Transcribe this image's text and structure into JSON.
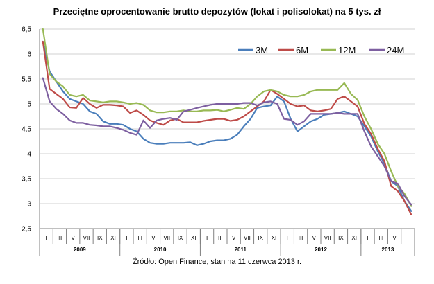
{
  "chart_data": {
    "type": "line",
    "title": "Przeciętne oprocentowanie  brutto  depozytów (lokat i polisolokat) na 5 tys. zł",
    "source": "Źródło: Open Finance, stan na 11 czerwca 2013 r.",
    "ylim": [
      2.5,
      6.5
    ],
    "y_ticks": [
      "6,5",
      "6",
      "5,5",
      "5",
      "4,5",
      "4",
      "3,5",
      "3",
      "2,5"
    ],
    "y_tick_values": [
      6.5,
      6,
      5.5,
      5,
      4.5,
      4,
      3.5,
      3,
      2.5
    ],
    "grid": true,
    "legend_position": "top-right",
    "month_labels": [
      "I",
      "III",
      "V",
      "VII",
      "IX",
      "XI",
      "I",
      "III",
      "V",
      "VII",
      "IX",
      "XI",
      "I",
      "III",
      "V",
      "VII",
      "IX",
      "XI",
      "I",
      "III",
      "V",
      "VII",
      "IX",
      "XI",
      "I",
      "III",
      "V"
    ],
    "years": [
      "2009",
      "2010",
      "2011",
      "2012",
      "2013"
    ],
    "series": [
      {
        "name": "3M",
        "color": "#4a7ebb",
        "values": [
          6.25,
          5.65,
          5.45,
          5.25,
          5.1,
          5.05,
          5.0,
          4.85,
          4.8,
          4.65,
          4.6,
          4.6,
          4.58,
          4.5,
          4.45,
          4.3,
          4.22,
          4.2,
          4.2,
          4.22,
          4.22,
          4.22,
          4.23,
          4.17,
          4.2,
          4.25,
          4.27,
          4.27,
          4.3,
          4.38,
          4.55,
          4.7,
          4.92,
          4.95,
          4.97,
          5.15,
          5.05,
          4.7,
          4.45,
          4.55,
          4.65,
          4.7,
          4.78,
          4.8,
          4.82,
          4.85,
          4.8,
          4.75,
          4.55,
          4.35,
          4.05,
          3.8,
          3.45,
          3.35,
          3.05,
          2.85
        ]
      },
      {
        "name": "6M",
        "color": "#be4b48",
        "values": [
          6.25,
          5.3,
          5.2,
          5.1,
          4.93,
          4.92,
          5.12,
          5.0,
          4.92,
          4.98,
          4.98,
          4.97,
          4.95,
          4.82,
          4.87,
          4.78,
          4.67,
          4.62,
          4.58,
          4.67,
          4.7,
          4.63,
          4.63,
          4.63,
          4.66,
          4.68,
          4.7,
          4.7,
          4.66,
          4.68,
          4.75,
          4.85,
          4.95,
          5.05,
          5.28,
          5.2,
          5.1,
          5.0,
          4.95,
          4.97,
          4.87,
          4.85,
          4.87,
          4.9,
          5.1,
          5.15,
          5.05,
          4.95,
          4.6,
          4.4,
          4.1,
          3.85,
          3.35,
          3.25,
          3.05,
          2.78
        ]
      },
      {
        "name": "12M",
        "color": "#98b954",
        "values": [
          6.5,
          5.6,
          5.45,
          5.35,
          5.18,
          5.15,
          5.18,
          5.07,
          5.05,
          5.03,
          5.05,
          5.05,
          5.03,
          5.0,
          5.02,
          4.98,
          4.87,
          4.83,
          4.83,
          4.85,
          4.85,
          4.87,
          4.85,
          4.85,
          4.87,
          4.87,
          4.88,
          4.85,
          4.88,
          4.92,
          4.9,
          5.0,
          5.15,
          5.25,
          5.28,
          5.25,
          5.18,
          5.15,
          5.15,
          5.18,
          5.25,
          5.28,
          5.28,
          5.28,
          5.28,
          5.42,
          5.2,
          5.08,
          4.75,
          4.5,
          4.2,
          4.0,
          3.65,
          3.35,
          3.2,
          2.95
        ]
      },
      {
        "name": "24M",
        "color": "#7d5fa0",
        "values": [
          5.52,
          5.05,
          4.9,
          4.8,
          4.67,
          4.62,
          4.62,
          4.58,
          4.57,
          4.55,
          4.55,
          4.52,
          4.48,
          4.42,
          4.38,
          4.67,
          4.52,
          4.67,
          4.7,
          4.72,
          4.68,
          4.85,
          4.88,
          4.92,
          4.95,
          4.98,
          5.0,
          5.0,
          5.0,
          5.0,
          5.02,
          5.02,
          4.97,
          5.03,
          5.05,
          5.0,
          4.7,
          4.68,
          4.58,
          4.65,
          4.8,
          4.8,
          4.8,
          4.8,
          4.82,
          4.8,
          4.8,
          4.8,
          4.45,
          4.15,
          3.95,
          3.75,
          3.45,
          3.4,
          3.15,
          2.98
        ]
      }
    ]
  }
}
